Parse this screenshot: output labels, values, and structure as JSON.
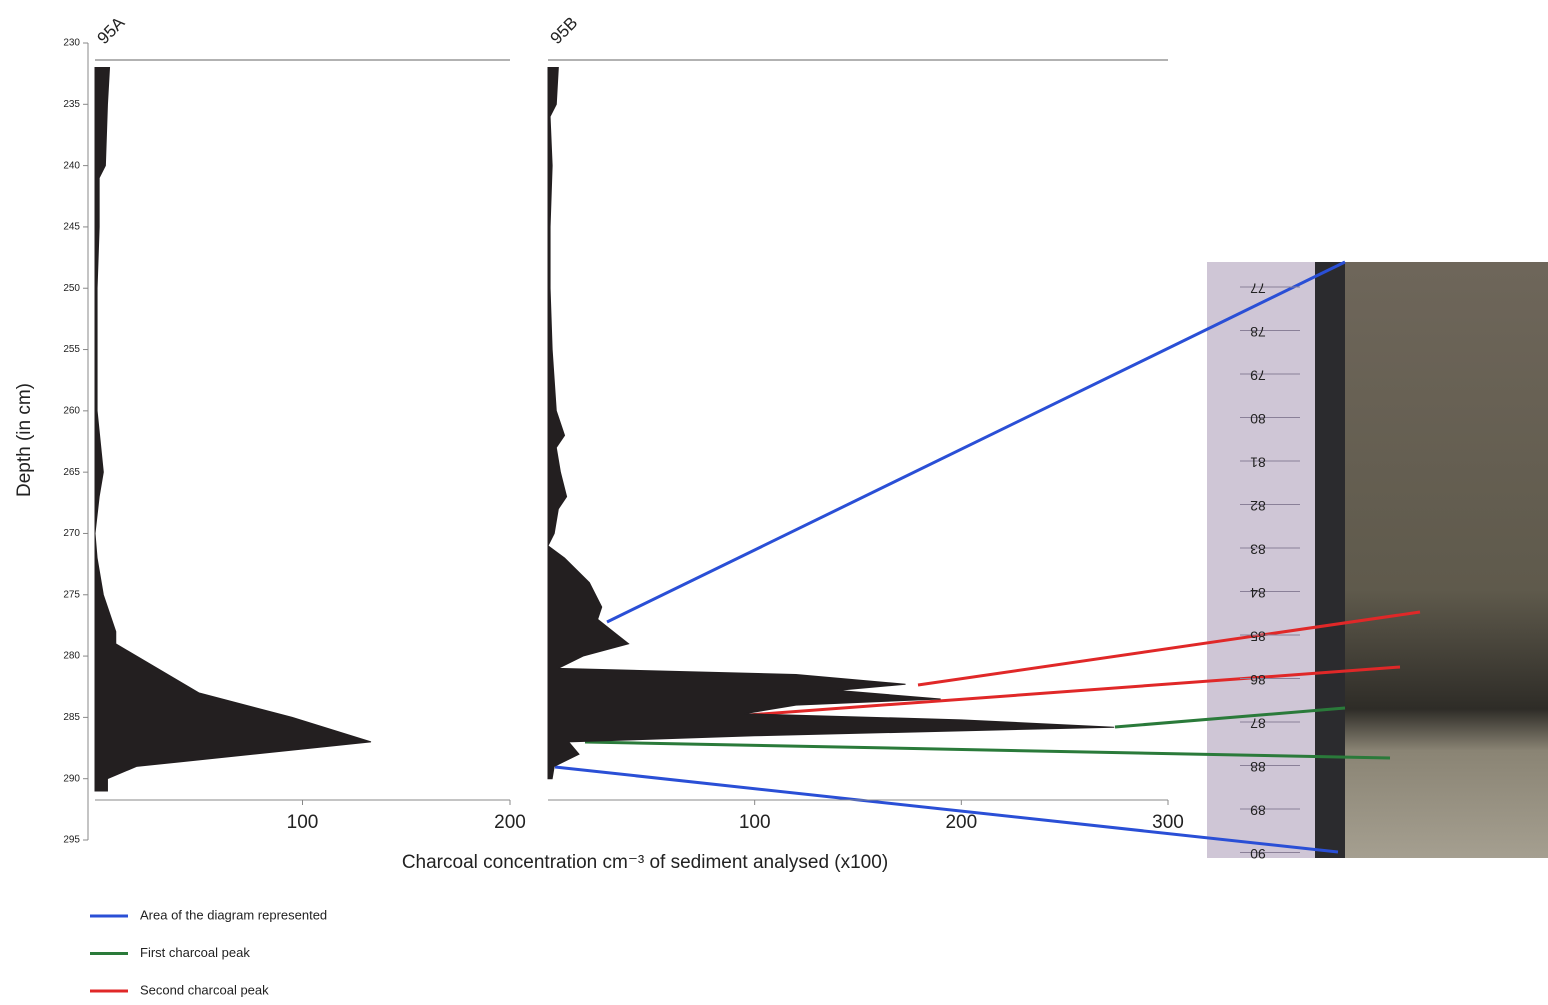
{
  "chart_data": [
    {
      "type": "area",
      "orientation": "vertical",
      "title": "95A",
      "ylabel": "Depth (in cm)",
      "xlabel": "Charcoal concentration cm⁻³ of sediment analysed (x100)",
      "x": [
        232,
        235,
        240,
        241,
        245,
        250,
        255,
        260,
        265,
        267,
        270,
        272,
        275,
        278,
        279,
        280,
        283,
        285,
        287,
        289,
        290,
        291
      ],
      "values": [
        7,
        6,
        5,
        2,
        2,
        1,
        1,
        1,
        4,
        2,
        0,
        1,
        4,
        10,
        10,
        20,
        50,
        95,
        133,
        20,
        6,
        6
      ],
      "color": "#231f20",
      "xlim": [
        0,
        200
      ],
      "xticks": [
        100,
        200
      ],
      "ylim": [
        230,
        295
      ],
      "invert_y": true,
      "yticks": [
        230,
        235,
        240,
        245,
        250,
        255,
        260,
        265,
        270,
        275,
        280,
        285,
        290,
        295
      ]
    },
    {
      "type": "area",
      "orientation": "vertical",
      "title": "95B",
      "x": [
        232,
        235,
        236,
        240,
        245,
        250,
        255,
        260,
        262,
        263,
        265,
        267,
        268,
        270,
        271,
        272,
        274,
        276,
        277,
        279,
        280,
        281,
        281.5,
        282.3,
        282.8,
        283.5,
        284,
        284.7,
        285.2,
        285.8,
        286.5,
        287,
        288,
        289,
        290
      ],
      "values": [
        5,
        4,
        1,
        2,
        1,
        1,
        2,
        4,
        8,
        4,
        6,
        9,
        5,
        3,
        0,
        8,
        20,
        26,
        24,
        39,
        17,
        5,
        120,
        173,
        140,
        190,
        120,
        95,
        200,
        274,
        100,
        10,
        15,
        3,
        2
      ],
      "color": "#231f20",
      "xlim": [
        0,
        300
      ],
      "xticks": [
        100,
        200,
        300
      ],
      "ylim": [
        230,
        295
      ],
      "invert_y": true
    }
  ],
  "legend": [
    {
      "label": "Area of the diagram represented",
      "color": "#2a4fd6"
    },
    {
      "label": "First charcoal peak",
      "color": "#2a7a3a"
    },
    {
      "label": "Second charcoal peak",
      "color": "#e02828"
    }
  ],
  "photo": {
    "ruler_labels": [
      "77",
      "78",
      "79",
      "80",
      "81",
      "82",
      "83",
      "84",
      "85",
      "86",
      "87",
      "88",
      "89",
      "90"
    ]
  }
}
